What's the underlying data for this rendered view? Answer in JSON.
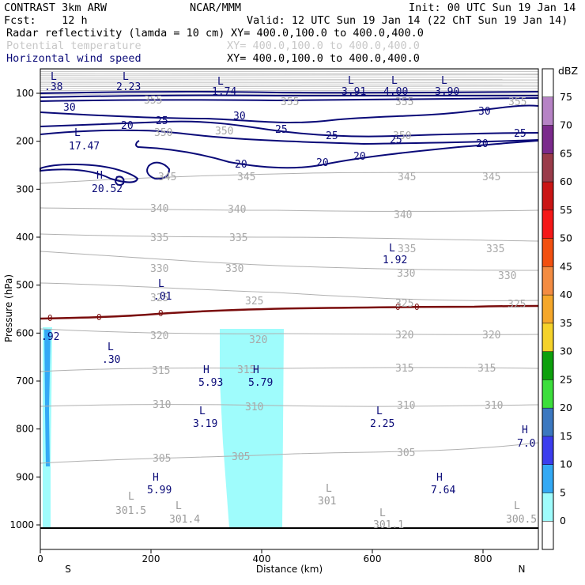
{
  "header": {
    "left1": "CONTRAST  3km ARW",
    "center1": "NCAR/MMM",
    "right1": "Init: 00 UTC Sun 19 Jan 14",
    "left2": "Fcst:    12 h",
    "right2": "Valid: 12 UTC Sun 19 Jan 14 (22 ChT Sun 19 Jan 14)",
    "field1": "Radar reflectivity (lamda = 10 cm)",
    "field1_xy": "XY= 400.0,100.0 to 400.0,400.0",
    "field2": "Potential temperature",
    "field2_xy": "XY= 400.0,100.0 to 400.0,400.0",
    "field3": "Horizontal wind speed",
    "field3_xy": "XY= 400.0,100.0 to 400.0,400.0"
  },
  "chart_data": {
    "type": "cross-section",
    "xlabel": "Distance (km)",
    "ylabel": "Pressure (hPa)",
    "xlim": [
      0,
      900
    ],
    "ylim": [
      1010,
      50
    ],
    "x_ticks": [
      0,
      200,
      400,
      600,
      800
    ],
    "x_tick_labels": [
      "0",
      "200",
      "400",
      "600",
      "800"
    ],
    "y_ticks": [
      100,
      200,
      300,
      400,
      500,
      600,
      700,
      800,
      900,
      1000
    ],
    "y_tick_labels": [
      "100",
      "200",
      "300",
      "400",
      "500",
      "600",
      "700",
      "800",
      "900",
      "1000"
    ],
    "direction_labels": {
      "left": "S",
      "right": "N"
    },
    "colorbar": {
      "unit": "dBZ",
      "levels": [
        "0",
        "5",
        "10",
        "15",
        "20",
        "25",
        "30",
        "35",
        "40",
        "45",
        "50",
        "55",
        "60",
        "65",
        "70",
        "75"
      ],
      "colors": [
        "#ffffff",
        "#9ffcfc",
        "#33a9f5",
        "#3b3dee",
        "#3b78c0",
        "#3cde3c",
        "#0da00c",
        "#f5d22a",
        "#f5a72a",
        "#f38c42",
        "#f25010",
        "#f51818",
        "#ca1515",
        "#9a3b4a",
        "#7b2a8c",
        "#b683c5",
        "#ffffff"
      ]
    },
    "theta_contours": [
      {
        "label": "345",
        "label_x": [
          210,
          430,
          700
        ]
      },
      {
        "label": "340",
        "label_x": [
          30,
          240,
          570
        ]
      },
      {
        "label": "335",
        "label_x": [
          190,
          360,
          630,
          830
        ]
      },
      {
        "label": "330",
        "label_x": [
          190,
          360,
          670,
          880
        ]
      },
      {
        "label": "325",
        "label_x": [
          200,
          390,
          670,
          880
        ]
      },
      {
        "label": "320",
        "label_x": [
          220,
          540,
          670,
          840
        ]
      },
      {
        "label": "315",
        "label_x": [
          210,
          380,
          660,
          810
        ]
      },
      {
        "label": "310",
        "label_x": [
          220,
          390,
          660,
          840
        ]
      },
      {
        "label": "305",
        "label_x": [
          220,
          390,
          670
        ]
      },
      {
        "label": "350",
        "label_x": [
          220,
          350,
          660
        ]
      },
      {
        "label": "355",
        "label_x": [
          440,
          660,
          870
        ]
      }
    ],
    "wind_speed_contours": [
      {
        "label": "30"
      },
      {
        "label": "25"
      },
      {
        "label": "20"
      }
    ],
    "freezing_level": {
      "label": "0",
      "pressure_left": 595,
      "pressure_right": 545
    },
    "reflectivity_cells": [
      {
        "x_range": [
          5,
          20
        ],
        "p_range": [
          585,
          1000
        ],
        "dbz": 10
      },
      {
        "x_range": [
          325,
          440
        ],
        "p_range": [
          595,
          1000
        ],
        "dbz": 5
      }
    ],
    "extrema": [
      {
        "type": "L",
        "value": ".38"
      },
      {
        "type": "L",
        "value": "2.23"
      },
      {
        "type": "L",
        "value": "1.74"
      },
      {
        "type": "L",
        "value": "3.91"
      },
      {
        "type": "L",
        "value": "4.00"
      },
      {
        "type": "L",
        "value": "3.90"
      },
      {
        "type": "L",
        "value": "17.47"
      },
      {
        "type": "H",
        "value": "20.52"
      },
      {
        "type": "L",
        "value": "1.92"
      },
      {
        "type": "L",
        "value": ".01"
      },
      {
        "type": "L",
        "value": ".30"
      },
      {
        "type": "H",
        "value": "5.93"
      },
      {
        "type": "H",
        "value": "5.79"
      },
      {
        "type": "L",
        "value": "3.19"
      },
      {
        "type": "L",
        "value": "2.25"
      },
      {
        "type": "H",
        "value": "7.0"
      },
      {
        "type": "H",
        "value": "5.99"
      },
      {
        "type": "H",
        "value": "7.64"
      },
      {
        "type": "L",
        "value": "301.5"
      },
      {
        "type": "L",
        "value": "301.4"
      },
      {
        "type": "L",
        "value": "301"
      },
      {
        "type": "L",
        "value": "301.1"
      },
      {
        "type": "L",
        "value": "300.5"
      },
      {
        "type": "L",
        "value": ".92"
      }
    ]
  }
}
